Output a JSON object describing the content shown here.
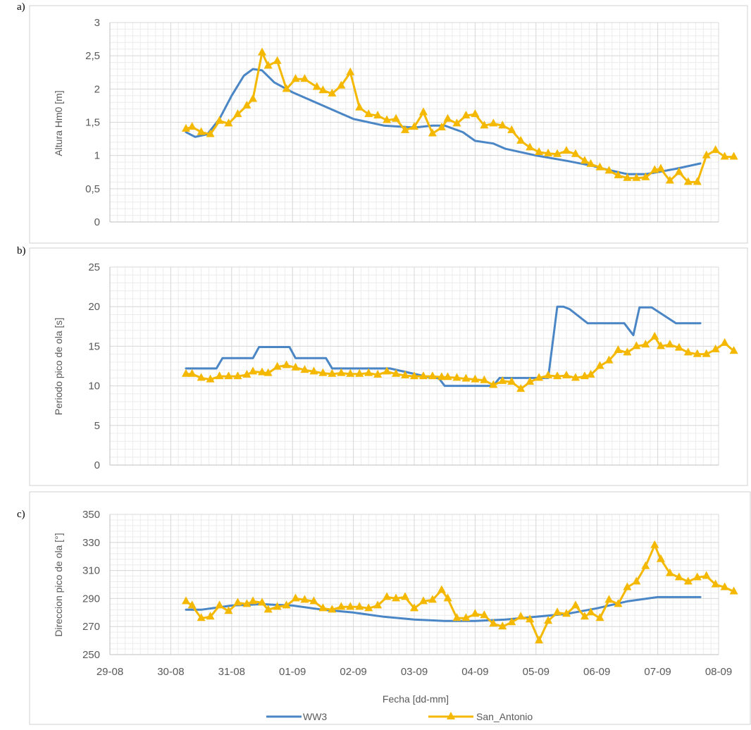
{
  "panel_labels": [
    "a)",
    "b)",
    "c)"
  ],
  "legend": {
    "series1": "WW3",
    "series2": "San_Antonio"
  },
  "colors": {
    "ww3": "#4a86c5",
    "san_antonio": "#f5b800",
    "grid": "#d9d9d9",
    "frame": "#d0d0d0"
  },
  "chart_data": [
    {
      "type": "line",
      "panel": "a)",
      "xlabel": "",
      "ylabel": "Altura Hm0 [m]",
      "ylim": [
        0,
        3
      ],
      "yticks": [
        0,
        0.5,
        1,
        1.5,
        2,
        2.5,
        3
      ],
      "ytick_labels": [
        "0",
        "0,5",
        "1",
        "1,5",
        "2",
        "2,5",
        "3"
      ],
      "xlim": [
        0,
        10
      ],
      "grid": true,
      "series": [
        {
          "name": "WW3",
          "x": [
            1.25,
            1.4,
            1.6,
            1.8,
            2.0,
            2.2,
            2.35,
            2.5,
            2.7,
            3.0,
            3.5,
            4.0,
            4.5,
            5.0,
            5.3,
            5.5,
            5.8,
            6.0,
            6.3,
            6.5,
            7.0,
            7.5,
            7.9,
            8.2,
            8.5,
            8.8,
            9.0,
            9.3,
            9.7
          ],
          "y": [
            1.35,
            1.28,
            1.32,
            1.55,
            1.9,
            2.2,
            2.3,
            2.28,
            2.1,
            1.95,
            1.75,
            1.55,
            1.45,
            1.42,
            1.45,
            1.45,
            1.35,
            1.22,
            1.18,
            1.1,
            1.0,
            0.92,
            0.85,
            0.78,
            0.72,
            0.72,
            0.75,
            0.8,
            0.88
          ]
        },
        {
          "name": "San_Antonio",
          "x": [
            1.25,
            1.35,
            1.5,
            1.65,
            1.8,
            1.95,
            2.1,
            2.25,
            2.35,
            2.5,
            2.6,
            2.75,
            2.9,
            3.05,
            3.2,
            3.4,
            3.5,
            3.65,
            3.8,
            3.95,
            4.1,
            4.25,
            4.4,
            4.55,
            4.7,
            4.85,
            5.0,
            5.15,
            5.3,
            5.45,
            5.55,
            5.7,
            5.85,
            6.0,
            6.15,
            6.3,
            6.45,
            6.6,
            6.75,
            6.9,
            7.05,
            7.2,
            7.35,
            7.5,
            7.65,
            7.8,
            7.9,
            8.05,
            8.2,
            8.35,
            8.5,
            8.65,
            8.8,
            8.95,
            9.05,
            9.2,
            9.35,
            9.5,
            9.65,
            9.8,
            9.95,
            10.1,
            10.25
          ],
          "y": [
            1.4,
            1.43,
            1.35,
            1.32,
            1.52,
            1.48,
            1.62,
            1.75,
            1.85,
            2.55,
            2.35,
            2.42,
            2.0,
            2.15,
            2.15,
            2.03,
            1.98,
            1.93,
            2.05,
            2.25,
            1.72,
            1.62,
            1.6,
            1.53,
            1.55,
            1.38,
            1.43,
            1.65,
            1.33,
            1.42,
            1.55,
            1.48,
            1.6,
            1.62,
            1.45,
            1.48,
            1.45,
            1.38,
            1.22,
            1.12,
            1.05,
            1.03,
            1.02,
            1.07,
            1.02,
            0.92,
            0.87,
            0.82,
            0.77,
            0.7,
            0.66,
            0.66,
            0.67,
            0.78,
            0.8,
            0.62,
            0.75,
            0.6,
            0.6,
            1.0,
            1.08,
            0.98,
            0.98
          ]
        }
      ]
    },
    {
      "type": "line",
      "panel": "b)",
      "xlabel": "",
      "ylabel": "Periodo pico de ola [s]",
      "ylim": [
        0,
        25
      ],
      "yticks": [
        0,
        5,
        10,
        15,
        20,
        25
      ],
      "ytick_labels": [
        "0",
        "5",
        "10",
        "15",
        "20",
        "25"
      ],
      "xlim": [
        0,
        10
      ],
      "grid": true,
      "series": [
        {
          "name": "WW3",
          "x": [
            1.25,
            1.75,
            1.85,
            2.35,
            2.45,
            2.95,
            3.05,
            3.55,
            3.65,
            4.05,
            4.15,
            4.5,
            4.6,
            5.3,
            5.4,
            5.5,
            5.6,
            5.7,
            5.8,
            6.3,
            6.4,
            6.8,
            6.9,
            7.2,
            7.35,
            7.45,
            7.55,
            7.85,
            7.95,
            8.35,
            8.45,
            8.6,
            8.7,
            8.8,
            8.9,
            9.3,
            9.4,
            9.7
          ],
          "y": [
            12.2,
            12.2,
            13.5,
            13.5,
            14.9,
            14.9,
            13.5,
            13.5,
            12.2,
            12.2,
            12.2,
            12.2,
            12.2,
            11.0,
            11.0,
            10.0,
            10.0,
            10.0,
            10.0,
            10.0,
            11.0,
            11.0,
            11.0,
            11.0,
            20.0,
            20.0,
            19.7,
            17.9,
            17.9,
            17.9,
            17.9,
            16.4,
            19.9,
            19.9,
            19.9,
            17.9,
            17.9,
            17.9
          ]
        },
        {
          "name": "San_Antonio",
          "x": [
            1.25,
            1.35,
            1.5,
            1.65,
            1.8,
            1.95,
            2.1,
            2.25,
            2.35,
            2.5,
            2.6,
            2.75,
            2.9,
            3.05,
            3.2,
            3.35,
            3.5,
            3.65,
            3.8,
            3.95,
            4.1,
            4.25,
            4.4,
            4.55,
            4.7,
            4.85,
            5.0,
            5.15,
            5.3,
            5.45,
            5.55,
            5.7,
            5.85,
            6.0,
            6.15,
            6.3,
            6.45,
            6.6,
            6.75,
            6.9,
            7.05,
            7.2,
            7.35,
            7.5,
            7.65,
            7.8,
            7.9,
            8.05,
            8.2,
            8.35,
            8.5,
            8.65,
            8.8,
            8.95,
            9.05,
            9.2,
            9.35,
            9.5,
            9.65,
            9.8,
            9.95,
            10.1,
            10.25
          ],
          "y": [
            11.5,
            11.5,
            11.0,
            10.8,
            11.2,
            11.2,
            11.2,
            11.4,
            11.8,
            11.7,
            11.6,
            12.4,
            12.6,
            12.3,
            12.0,
            11.8,
            11.6,
            11.5,
            11.6,
            11.5,
            11.5,
            11.6,
            11.4,
            11.8,
            11.5,
            11.3,
            11.2,
            11.2,
            11.2,
            11.1,
            11.1,
            11.0,
            10.9,
            10.8,
            10.7,
            10.1,
            10.6,
            10.5,
            9.6,
            10.5,
            11.0,
            11.3,
            11.2,
            11.3,
            11.0,
            11.2,
            11.4,
            12.5,
            13.2,
            14.5,
            14.2,
            15.0,
            15.2,
            16.2,
            15.0,
            15.2,
            14.8,
            14.2,
            14.0,
            14.0,
            14.6,
            15.4,
            14.4
          ]
        }
      ]
    },
    {
      "type": "line",
      "panel": "c)",
      "xlabel": "Fecha [dd-mm]",
      "ylabel": "Direccion pico de ola [°]",
      "ylim": [
        250,
        350
      ],
      "yticks": [
        250,
        270,
        290,
        310,
        330,
        350
      ],
      "ytick_labels": [
        "250",
        "270",
        "290",
        "310",
        "330",
        "350"
      ],
      "xlim": [
        0,
        10
      ],
      "xticks": [
        0,
        1,
        2,
        3,
        4,
        5,
        6,
        7,
        8,
        9,
        10
      ],
      "xtick_labels": [
        "29-08",
        "30-08",
        "31-08",
        "01-09",
        "02-09",
        "03-09",
        "04-09",
        "05-09",
        "06-09",
        "07-09",
        "08-09"
      ],
      "grid": true,
      "series": [
        {
          "name": "WW3",
          "x": [
            1.25,
            1.5,
            2.0,
            2.5,
            3.0,
            3.5,
            4.0,
            4.5,
            5.0,
            5.5,
            6.0,
            6.5,
            7.0,
            7.5,
            8.0,
            8.5,
            9.0,
            9.3,
            9.7
          ],
          "y": [
            282,
            282,
            285,
            286,
            285,
            282,
            280,
            277,
            275,
            274,
            274,
            275,
            277,
            279,
            283,
            288,
            291,
            291,
            291
          ]
        },
        {
          "name": "San_Antonio",
          "x": [
            1.25,
            1.35,
            1.5,
            1.65,
            1.8,
            1.95,
            2.1,
            2.25,
            2.35,
            2.5,
            2.6,
            2.75,
            2.9,
            3.05,
            3.2,
            3.35,
            3.5,
            3.65,
            3.8,
            3.95,
            4.1,
            4.25,
            4.4,
            4.55,
            4.7,
            4.85,
            5.0,
            5.15,
            5.3,
            5.45,
            5.55,
            5.7,
            5.85,
            6.0,
            6.15,
            6.3,
            6.45,
            6.6,
            6.75,
            6.9,
            7.05,
            7.2,
            7.35,
            7.5,
            7.65,
            7.8,
            7.9,
            8.05,
            8.2,
            8.35,
            8.5,
            8.65,
            8.8,
            8.95,
            9.05,
            9.2,
            9.35,
            9.5,
            9.65,
            9.8,
            9.95,
            10.1,
            10.25
          ],
          "y": [
            288,
            285,
            276,
            277,
            285,
            281,
            287,
            286,
            288,
            287,
            282,
            284,
            285,
            290,
            289,
            288,
            283,
            282,
            284,
            284,
            284,
            283,
            285,
            291,
            290,
            291,
            283,
            288,
            289,
            296,
            290,
            276,
            276,
            279,
            278,
            272,
            270,
            273,
            277,
            275,
            260,
            274,
            280,
            279,
            285,
            277,
            280,
            276,
            289,
            286,
            298,
            302,
            313,
            328,
            318,
            308,
            305,
            302,
            305,
            306,
            300,
            298,
            295
          ]
        }
      ]
    }
  ]
}
